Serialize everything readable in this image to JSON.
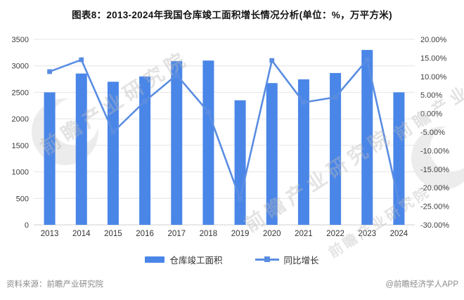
{
  "title": "图表8：2013-2024年我国仓库竣工面积增长情况分析(单位：%，万平方米)",
  "source_note": "资料来源：前瞻产业研究院",
  "attribution": "@前瞻经济学人APP",
  "watermark_text": "前瞻产业研究院",
  "legend": {
    "bar_label": "仓库竣工面积",
    "line_label": "同比增长"
  },
  "colors": {
    "bar": "#4a86e8",
    "line": "#5a8de2",
    "grid": "#e4e4e4",
    "axis_line": "#d0d0d0",
    "tick_text": "#3d3d3d",
    "note_text": "#8a8a8a"
  },
  "chart_data": {
    "type": "bar",
    "subtype": "bar+line combo, dual axis",
    "categories": [
      "2013",
      "2014",
      "2015",
      "2016",
      "2017",
      "2018",
      "2019",
      "2020",
      "2021",
      "2022",
      "2023",
      "2024"
    ],
    "series": [
      {
        "name": "仓库竣工面积",
        "type": "bar",
        "axis": "left",
        "unit": "万平方米",
        "values": [
          2500,
          2855,
          2700,
          2800,
          3090,
          3100,
          2350,
          2675,
          2745,
          2865,
          3300,
          2500
        ]
      },
      {
        "name": "同比增长",
        "type": "line",
        "axis": "right",
        "unit": "%",
        "values": [
          11.3,
          14.5,
          -5.0,
          3.3,
          10.4,
          0.4,
          -23.0,
          14.3,
          3.0,
          4.4,
          14.5,
          -23.8
        ]
      }
    ],
    "left_axis": {
      "min": 0,
      "max": 3500,
      "ticks": [
        "3500",
        "3000",
        "2500",
        "2000",
        "1500",
        "1000",
        "500",
        "0"
      ]
    },
    "right_axis": {
      "min": -30,
      "max": 20,
      "ticks": [
        "20.00%",
        "15.00%",
        "10.00%",
        "5.00%",
        "0.00%",
        "-5.00%",
        "-10.00%",
        "-15.00%",
        "-20.00%",
        "-25.00%",
        "-30.00%"
      ]
    },
    "grid": "horizontal only",
    "legend_position": "bottom center"
  }
}
